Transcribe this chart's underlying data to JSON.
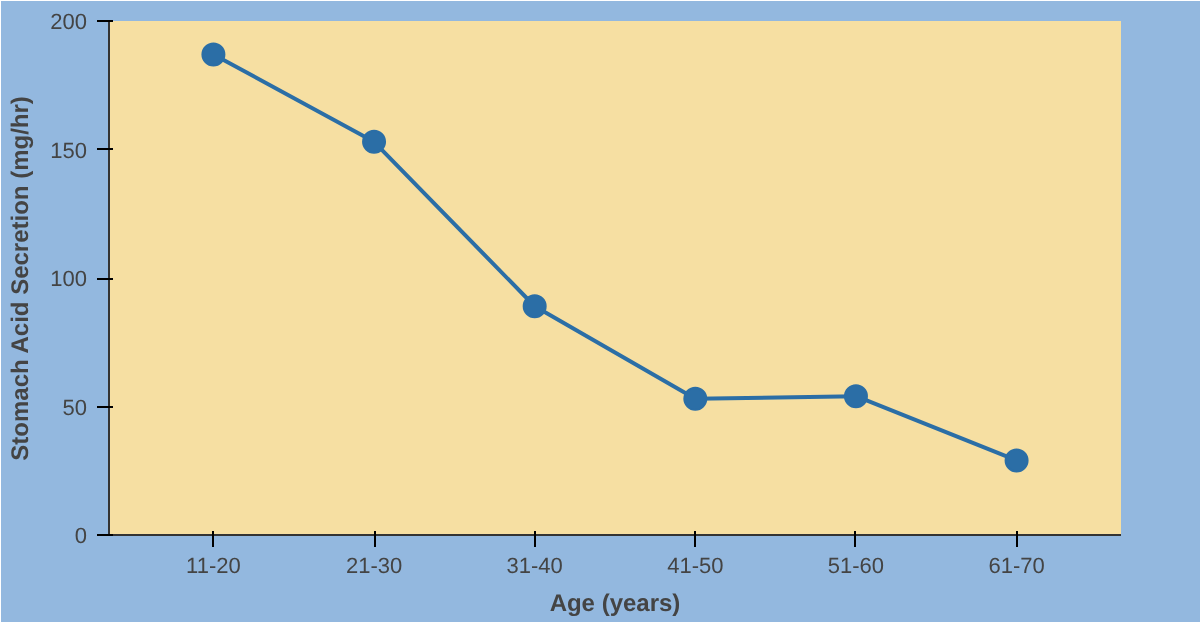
{
  "chart_data": {
    "type": "line",
    "xlabel": "Age (years)",
    "ylabel": "Stomach Acid Secretion (mg/hr)",
    "categories": [
      "11-20",
      "21-30",
      "31-40",
      "41-50",
      "51-60",
      "61-70"
    ],
    "series": [
      {
        "color": "#2b6ea6",
        "values": [
          187,
          153,
          89,
          53,
          54,
          29
        ]
      }
    ],
    "ylim": [
      0,
      200
    ],
    "yticks": [
      0,
      50,
      100,
      150,
      200
    ],
    "grid": false,
    "marker": "circle",
    "line_style": "solid"
  }
}
